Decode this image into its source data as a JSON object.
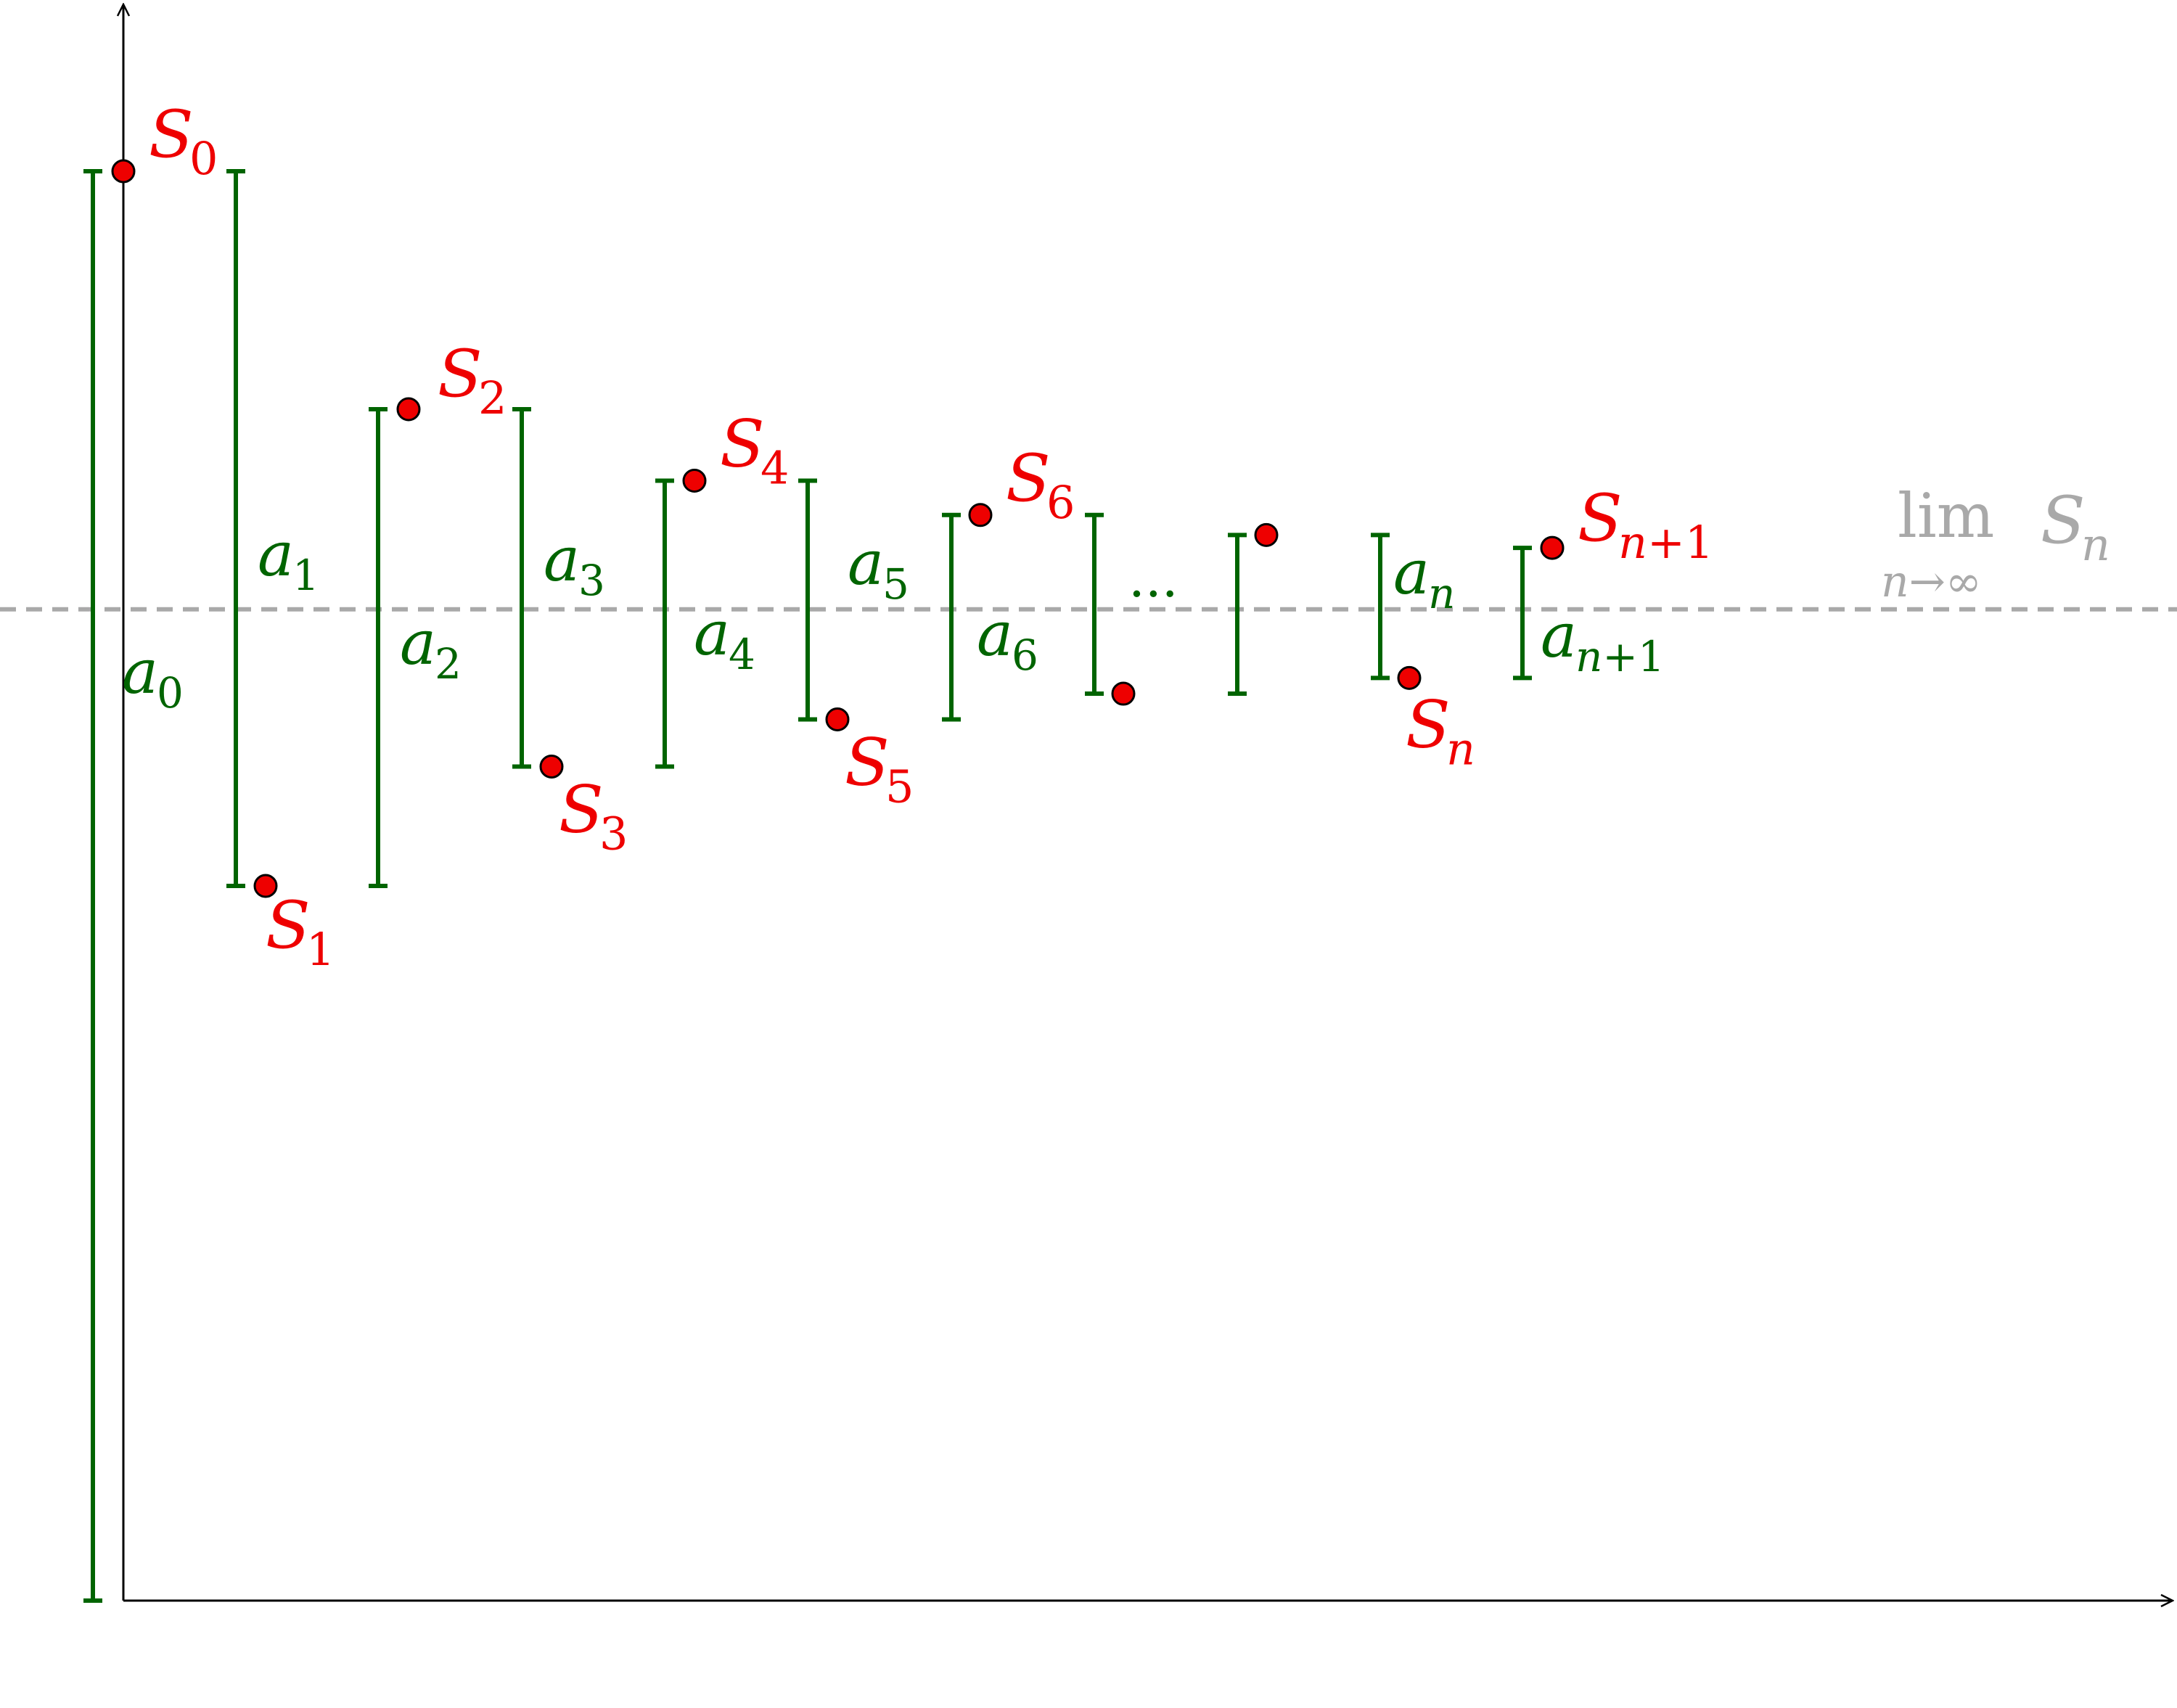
{
  "colors": {
    "axis": "#000000",
    "term": "#006400",
    "partial_sum_fill": "#ee0000",
    "partial_sum_stroke": "#000000",
    "partial_sum_label": "#ee0000",
    "limit": "#a9a9a9"
  },
  "terms": [
    {
      "symbol": "a",
      "sub": "0",
      "from": 2.0,
      "to": 0.0
    },
    {
      "symbol": "a",
      "sub": "1",
      "from": 2.0,
      "to": 1.0
    },
    {
      "symbol": "a",
      "sub": "2",
      "from": 1.0,
      "to": 1.667
    },
    {
      "symbol": "a",
      "sub": "3",
      "from": 1.667,
      "to": 1.167
    },
    {
      "symbol": "a",
      "sub": "4",
      "from": 1.167,
      "to": 1.567
    },
    {
      "symbol": "a",
      "sub": "5",
      "from": 1.567,
      "to": 1.233
    },
    {
      "symbol": "a",
      "sub": "6",
      "from": 1.233,
      "to": 1.519
    },
    {
      "symbol": "",
      "sub": "",
      "from": 1.519,
      "to": 1.269
    },
    {
      "symbol": "",
      "sub": "",
      "from": 1.269,
      "to": 1.491
    },
    {
      "symbol": "a",
      "sub": "n",
      "from": 1.491,
      "to": 1.291
    },
    {
      "symbol": "a",
      "sub": "n+1",
      "from": 1.291,
      "to": 1.473
    }
  ],
  "partial_sums": [
    {
      "symbol": "S",
      "sub": "0",
      "value": 2.0
    },
    {
      "symbol": "S",
      "sub": "1",
      "value": 1.0
    },
    {
      "symbol": "S",
      "sub": "2",
      "value": 1.667
    },
    {
      "symbol": "S",
      "sub": "3",
      "value": 1.167
    },
    {
      "symbol": "S",
      "sub": "4",
      "value": 1.567
    },
    {
      "symbol": "S",
      "sub": "5",
      "value": 1.233
    },
    {
      "symbol": "S",
      "sub": "6",
      "value": 1.519
    },
    {
      "symbol": "",
      "sub": "",
      "value": 1.269
    },
    {
      "symbol": "",
      "sub": "",
      "value": 1.491
    },
    {
      "symbol": "S",
      "sub": "n",
      "value": 1.291
    },
    {
      "symbol": "S",
      "sub": "n+1",
      "value": 1.473
    }
  ],
  "limit": {
    "value": 1.387,
    "lim_text": "lim",
    "lim_sub": "n→∞",
    "symbol": "S",
    "symbol_sub": "n"
  },
  "ellipsis": "..."
}
